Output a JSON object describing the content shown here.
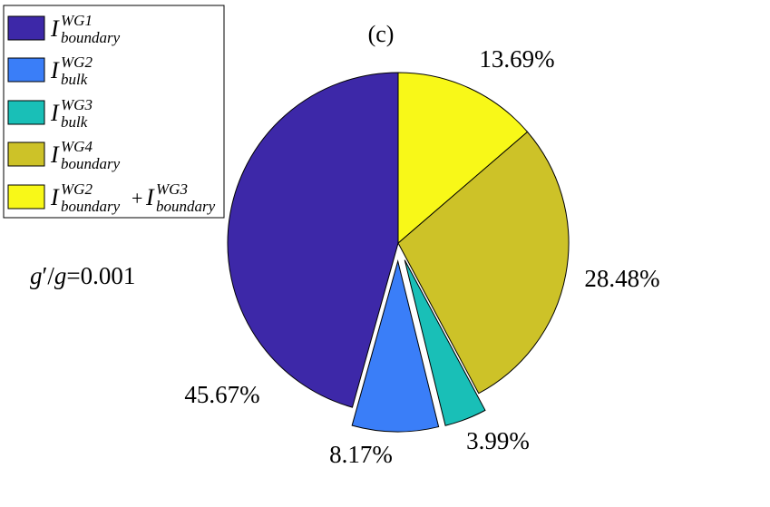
{
  "chart_data": {
    "type": "pie",
    "title": "(c)",
    "annotation": "g′/g=0.001",
    "series": [
      {
        "name": "I_boundary^WG1",
        "value": 45.67,
        "label": "45.67%",
        "color": "#3d28a8",
        "exploded": false
      },
      {
        "name": "I_bulk^WG2",
        "value": 8.17,
        "label": "8.17%",
        "color": "#3a7ef8",
        "exploded": true
      },
      {
        "name": "I_bulk^WG3",
        "value": 3.99,
        "label": "3.99%",
        "color": "#19bfb7",
        "exploded": true
      },
      {
        "name": "I_boundary^WG4",
        "value": 28.48,
        "label": "28.48%",
        "color": "#cdc228",
        "exploded": false
      },
      {
        "name": "I_boundary^WG2 + I_boundary^WG3",
        "value": 13.69,
        "label": "13.69%",
        "color": "#f8f818",
        "exploded": false
      }
    ],
    "legend": {
      "placement": "top-left",
      "entries": [
        {
          "base": "I",
          "sup": "WG1",
          "sub": "boundary"
        },
        {
          "base": "I",
          "sup": "WG2",
          "sub": "bulk"
        },
        {
          "base": "I",
          "sup": "WG3",
          "sub": "bulk"
        },
        {
          "base": "I",
          "sup": "WG4",
          "sub": "boundary"
        },
        {
          "base": "I",
          "sup": "WG2",
          "sub": "boundary",
          "plus": "+",
          "base2": "I",
          "sup2": "WG3",
          "sub2": "boundary"
        }
      ]
    },
    "clockwise_from": "top"
  }
}
